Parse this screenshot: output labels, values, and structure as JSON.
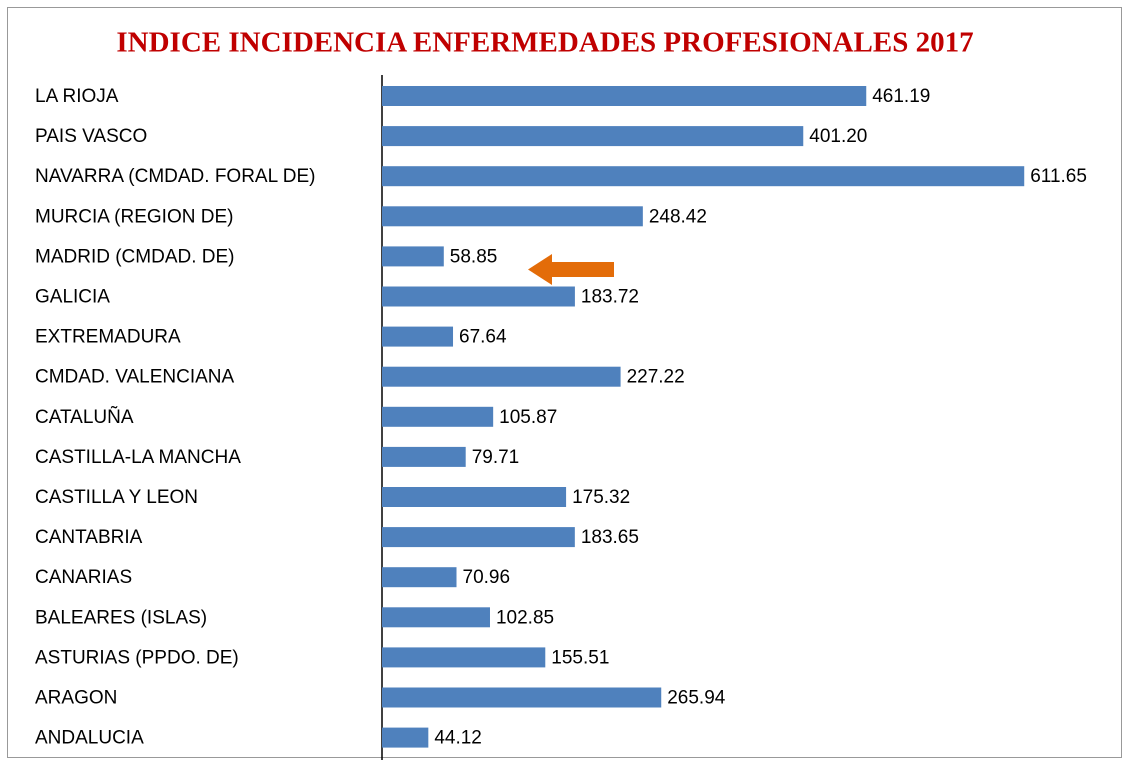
{
  "chart_data": {
    "type": "bar",
    "orientation": "horizontal",
    "title": "INDICE INCIDENCIA ENFERMEDADES PROFESIONALES 2017",
    "categories": [
      "LA RIOJA",
      "PAIS VASCO",
      "NAVARRA (CMDAD. FORAL DE)",
      "MURCIA (REGION DE)",
      "MADRID (CMDAD. DE)",
      "GALICIA",
      "EXTREMADURA",
      "CMDAD. VALENCIANA",
      "CATALUÑA",
      "CASTILLA-LA MANCHA",
      "CASTILLA Y LEON",
      "CANTABRIA",
      "CANARIAS",
      "BALEARES (ISLAS)",
      "ASTURIAS (PPDO. DE)",
      "ARAGON",
      "ANDALUCIA"
    ],
    "values": [
      461.19,
      401.2,
      611.65,
      248.42,
      58.85,
      183.72,
      67.64,
      227.22,
      105.87,
      79.71,
      175.32,
      183.65,
      70.96,
      102.85,
      155.51,
      265.94,
      44.12
    ],
    "value_labels": [
      "461.19",
      "401.20",
      "611.65",
      "248.42",
      "58.85",
      "183.72",
      "67.64",
      "227.22",
      "105.87",
      "79.71",
      "175.32",
      "183.65",
      "70.96",
      "102.85",
      "155.51",
      "265.94",
      "44.12"
    ],
    "color": "#4f81bd",
    "xlim": [
      0,
      700
    ]
  }
}
